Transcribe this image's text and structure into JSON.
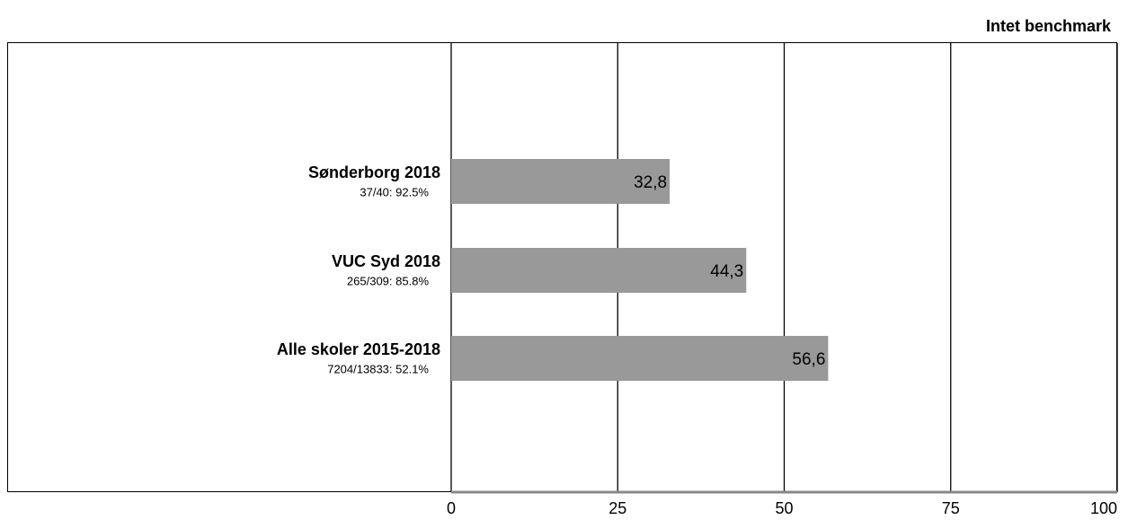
{
  "chart_data": {
    "type": "barh",
    "title": "Intet benchmark",
    "categories": [
      "Sønderborg 2018",
      "VUC Syd 2018",
      "Alle skoler 2015-2018"
    ],
    "category_notes": [
      "37/40: 92.5%",
      "265/309: 85.8%",
      "7204/13833: 52.1%"
    ],
    "values": [
      32.8,
      44.3,
      56.6
    ],
    "value_labels": [
      "32,8",
      "44,3",
      "56,6"
    ],
    "color": "#999999",
    "xlim": [
      0,
      100
    ],
    "xticks": [
      0,
      25,
      50,
      75,
      100
    ],
    "grid": true
  }
}
